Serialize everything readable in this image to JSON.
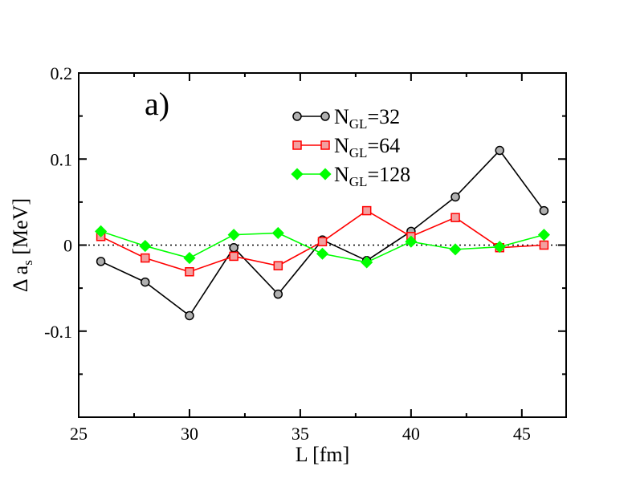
{
  "chart_data": {
    "type": "line",
    "panel_label": "a)",
    "xlabel": "L [fm]",
    "ylabel": "Δ a",
    "ylabel_sub": "s",
    "ylabel_unit": " [MeV]",
    "xlim": [
      25,
      47
    ],
    "ylim": [
      -0.2,
      0.2
    ],
    "xticks": [
      25,
      30,
      35,
      40,
      45
    ],
    "xtick_labels": [
      "25",
      "30",
      "35",
      "40",
      "45"
    ],
    "yticks": [
      -0.1,
      0,
      0.1,
      0.2
    ],
    "ytick_labels": [
      "-0.1",
      "0",
      "0.1",
      "0.2"
    ],
    "reference_line": {
      "y": 0,
      "style": "dotted"
    },
    "x": [
      26,
      28,
      30,
      32,
      34,
      36,
      38,
      40,
      42,
      44,
      46
    ],
    "series": [
      {
        "name": "N_GL=32",
        "legend_main": "N",
        "legend_sub": "GL",
        "legend_value": "=32",
        "marker": "circle",
        "color": "#000000",
        "fill": "#b0b0b0",
        "values": [
          -0.019,
          -0.043,
          -0.082,
          -0.003,
          -0.057,
          0.006,
          -0.018,
          0.016,
          0.056,
          0.11,
          0.04
        ]
      },
      {
        "name": "N_GL=64",
        "legend_main": "N",
        "legend_sub": "GL",
        "legend_value": "=64",
        "marker": "square",
        "color": "#ff0000",
        "fill": "#f2a0a0",
        "values": [
          0.01,
          -0.015,
          -0.031,
          -0.013,
          -0.024,
          0.004,
          0.04,
          0.01,
          0.032,
          -0.003,
          0.0
        ]
      },
      {
        "name": "N_GL=128",
        "legend_main": "N",
        "legend_sub": "GL",
        "legend_value": "=128",
        "marker": "diamond",
        "color": "#00ff00",
        "fill": "#00ff00",
        "values": [
          0.016,
          -0.001,
          -0.015,
          0.012,
          0.014,
          -0.01,
          -0.02,
          0.004,
          -0.005,
          -0.002,
          0.012
        ]
      }
    ]
  }
}
